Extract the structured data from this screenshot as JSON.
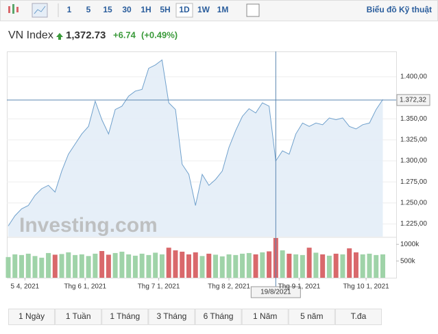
{
  "toolbar": {
    "intervals": [
      "1",
      "5",
      "15",
      "30",
      "1H",
      "5H",
      "1D",
      "1W",
      "1M"
    ],
    "active": "1D",
    "link": "Biểu đồ Kỹ thuật"
  },
  "header": {
    "name": "VN Index",
    "price": "1,372.73",
    "change": "+6.74",
    "percent": "(+0.49%)"
  },
  "watermark": "Investing.com",
  "ranges": [
    "1 Ngày",
    "1 Tuần",
    "1 Tháng",
    "3 Tháng",
    "6 Tháng",
    "1 Năm",
    "5 năm",
    "T.đa"
  ],
  "chart_data": {
    "type": "line",
    "x": [
      0,
      2,
      4,
      6,
      8,
      10,
      12,
      14,
      16,
      18,
      20,
      22,
      24,
      26,
      28,
      30,
      32,
      34,
      36,
      38,
      40,
      42,
      44,
      46,
      48,
      50,
      52,
      54,
      56,
      58,
      60,
      62,
      64,
      66,
      68,
      70,
      72,
      74,
      76,
      78,
      80,
      82,
      84,
      86,
      88,
      90,
      92,
      94,
      96,
      98,
      100,
      102,
      104,
      106,
      108,
      110,
      112
    ],
    "series": [
      {
        "name": "VN Index",
        "color": "#6fa0cc",
        "values": [
          1222.6,
          1234.8,
          1243,
          1247,
          1259,
          1267,
          1271,
          1263,
          1288,
          1308,
          1320,
          1332,
          1341,
          1371,
          1349,
          1332,
          1361,
          1365,
          1377,
          1383,
          1385,
          1410,
          1414,
          1420,
          1369,
          1361,
          1296,
          1284,
          1247,
          1284,
          1271,
          1278,
          1288,
          1316,
          1336,
          1353,
          1362,
          1357,
          1369,
          1365,
          1300,
          1312,
          1308,
          1332,
          1345,
          1341,
          1345,
          1343,
          1351,
          1349,
          1351,
          1341,
          1338,
          1343,
          1345,
          1361,
          1373
        ]
      },
      {
        "name": "Volume",
        "axis": "y2",
        "values": [
          620000,
          700000,
          680000,
          720000,
          650000,
          600000,
          740000,
          690000,
          710000,
          760000,
          680000,
          700000,
          650000,
          720000,
          800000,
          690000,
          740000,
          780000,
          700000,
          660000,
          720000,
          680000,
          750000,
          700000,
          900000,
          820000,
          780000,
          700000,
          760000,
          650000,
          720000,
          690000,
          640000,
          700000,
          680000,
          720000,
          740000,
          700000,
          760000,
          790000,
          1190000,
          820000,
          720000,
          700000,
          680000,
          900000,
          750000,
          700000,
          660000,
          720000,
          700000,
          880000,
          760000,
          700000,
          720000,
          680000,
          700000
        ]
      }
    ],
    "up_color": "#9fd3a8",
    "down_color": "#d9686b",
    "xlim": [
      0,
      116
    ],
    "xticks": [
      {
        "value": 5,
        "label": "5 4, 2021"
      },
      {
        "value": 23,
        "label": "Thg 6 1, 2021"
      },
      {
        "value": 45,
        "label": "Thg 7 1, 2021"
      },
      {
        "value": 66,
        "label": "Thg 8 2, 2021"
      },
      {
        "value": 87,
        "label": "Thg 9 1, 2021"
      },
      {
        "value": 107,
        "label": "Thg 10 1, 2021"
      }
    ],
    "ylim": [
      1210,
      1426
    ],
    "yticks": [
      {
        "value": 1225,
        "label": "1.225,00"
      },
      {
        "value": 1250,
        "label": "1.250,00"
      },
      {
        "value": 1275,
        "label": "1.275,00"
      },
      {
        "value": 1300,
        "label": "1.300,00"
      },
      {
        "value": 1325,
        "label": "1.325,00"
      },
      {
        "value": 1350,
        "label": "1.350,00"
      },
      {
        "value": 1400,
        "label": "1.400,00"
      }
    ],
    "y2lim": [
      0,
      1190000
    ],
    "y2ticks": [
      {
        "value": 500000,
        "label": "500k"
      },
      {
        "value": 1000000,
        "label": "1000k"
      }
    ],
    "crosshair": {
      "x": {
        "value": 80,
        "label": "19/8/2021"
      },
      "y": {
        "value": 1372.32,
        "label": "1.372,32"
      }
    }
  }
}
